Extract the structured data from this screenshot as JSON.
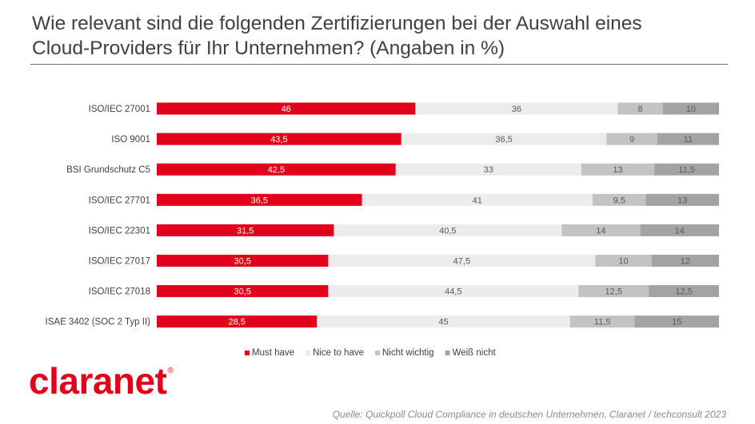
{
  "brand": {
    "logo_text": "claranet",
    "trademark": "®",
    "color": "#e2001a"
  },
  "source_text": "Quelle: Quickpoll Cloud Compliance in deutschen Unternehmen, Claranet / techconsult 2023",
  "chart_data": {
    "type": "bar",
    "orientation": "horizontal",
    "stacked": true,
    "title_lines": [
      "Wie relevant sind die folgenden Zertifizierungen bei der Auswahl eines",
      "Cloud-Providers für Ihr Unternehmen? (Angaben in %)"
    ],
    "categories": [
      "ISO/IEC 27001",
      "ISO 9001",
      "BSI Grundschutz C5",
      "ISO/IEC 27701",
      "ISO/IEC 22301",
      "ISO/IEC 27017",
      "ISO/IEC 27018",
      "ISAE 3402 (SOC 2 Typ II)"
    ],
    "series": [
      {
        "name": "Must have",
        "color": "#e2001a",
        "label_color": "#ffffff",
        "values": [
          46,
          43.5,
          42.5,
          36.5,
          31.5,
          30.5,
          30.5,
          28.5
        ],
        "labels": [
          "46",
          "43,5",
          "42,5",
          "36,5",
          "31,5",
          "30,5",
          "30,5",
          "28,5"
        ]
      },
      {
        "name": "Nice to have",
        "color": "#ececec",
        "label_color": "#595959",
        "values": [
          36,
          36.5,
          33,
          41,
          40.5,
          47.5,
          44.5,
          45
        ],
        "labels": [
          "36",
          "36,5",
          "33",
          "41",
          "40,5",
          "47,5",
          "44,5",
          "45"
        ]
      },
      {
        "name": "Nicht wichtig",
        "color": "#c3c3c3",
        "label_color": "#595959",
        "values": [
          8,
          9,
          13,
          9.5,
          14,
          10,
          12.5,
          11.5
        ],
        "labels": [
          "8",
          "9",
          "13",
          "9,5",
          "14",
          "10",
          "12,5",
          "11,5"
        ]
      },
      {
        "name": "Weiß nicht",
        "color": "#a3a3a3",
        "label_color": "#595959",
        "values": [
          10,
          11,
          11.5,
          13,
          14,
          12,
          12.5,
          15
        ],
        "labels": [
          "10",
          "11",
          "11,5",
          "13",
          "14",
          "12",
          "12,5",
          "15"
        ]
      }
    ],
    "xlim": [
      0,
      100
    ],
    "grid": false,
    "legend_position": "bottom"
  }
}
